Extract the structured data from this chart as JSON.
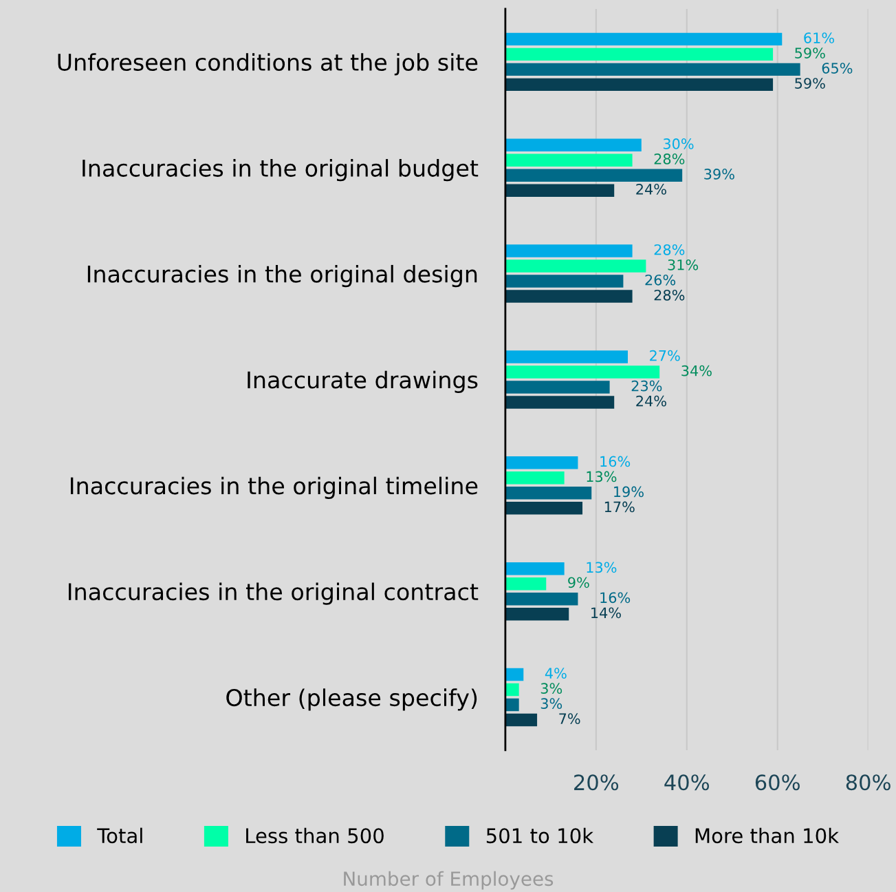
{
  "chart_data": {
    "type": "bar",
    "orientation": "horizontal",
    "legend_title": "Number of Employees",
    "categories": [
      "Unforeseen conditions at the job site",
      "Inaccuracies in the original budget",
      "Inaccuracies in the original design",
      "Inaccurate drawings",
      "Inaccuracies in the original timeline",
      "Inaccuracies in the original contract",
      "Other (please specify)"
    ],
    "series": [
      {
        "name": "Total",
        "color": "#00ace6",
        "values": [
          61,
          30,
          28,
          27,
          16,
          13,
          4
        ],
        "value_labels": [
          "61%",
          "30%",
          "28%",
          "27%",
          "16%",
          "13%",
          "4%"
        ]
      },
      {
        "name": "Less than 500",
        "color": "#00ffa8",
        "values": [
          59,
          28,
          31,
          34,
          13,
          9,
          3
        ],
        "value_labels": [
          "59%",
          "28%",
          "31%",
          "34%",
          "13%",
          "9%",
          "3%"
        ]
      },
      {
        "name": "501 to 10k",
        "color": "#006a88",
        "values": [
          65,
          39,
          26,
          23,
          19,
          16,
          3
        ],
        "value_labels": [
          "65%",
          "39%",
          "26%",
          "23%",
          "19%",
          "16%",
          "3%"
        ]
      },
      {
        "name": "More than 10k",
        "color": "#083f53",
        "values": [
          59,
          24,
          28,
          24,
          17,
          14,
          7
        ],
        "value_labels": [
          "59%",
          "24%",
          "28%",
          "24%",
          "17%",
          "14%",
          "7%"
        ]
      }
    ],
    "xlim": [
      0,
      80
    ],
    "xticks": [
      {
        "value": 20,
        "label": "20%"
      },
      {
        "value": 40,
        "label": "40%"
      },
      {
        "value": 60,
        "label": "60%"
      },
      {
        "value": 80,
        "label": "80%"
      }
    ],
    "grid": "x",
    "legend": "bottom"
  }
}
